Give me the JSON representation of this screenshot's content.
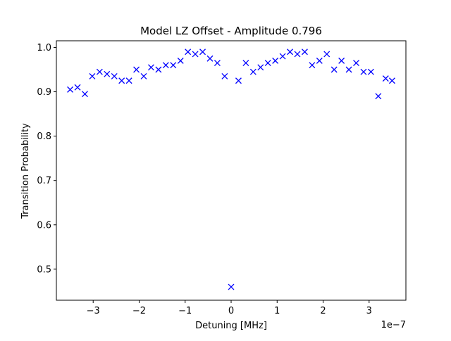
{
  "chart_data": {
    "type": "scatter",
    "title": "Model LZ Offset - Amplitude 0.796",
    "xlabel": "Detuning [MHz]",
    "ylabel": "Transition Probability",
    "x_offset_label": "1e−7",
    "xlim": [
      -3.8,
      3.8
    ],
    "ylim": [
      0.43,
      1.015
    ],
    "xticks": [
      -3,
      -2,
      -1,
      0,
      1,
      2,
      3
    ],
    "xtick_labels": [
      "−3",
      "−2",
      "−1",
      "0",
      "1",
      "2",
      "3"
    ],
    "yticks": [
      0.5,
      0.6,
      0.7,
      0.8,
      0.9,
      1.0
    ],
    "ytick_labels": [
      "0.5",
      "0.6",
      "0.7",
      "0.8",
      "0.9",
      "1.0"
    ],
    "grid": false,
    "marker": "x",
    "color": "#0000ff",
    "series": [
      {
        "x": [
          -3.5,
          -3.34,
          -3.18,
          -3.02,
          -2.86,
          -2.7,
          -2.54,
          -2.38,
          -2.22,
          -2.06,
          -1.9,
          -1.74,
          -1.58,
          -1.42,
          -1.26,
          -1.1,
          -0.94,
          -0.78,
          -0.62,
          -0.46,
          -0.3,
          -0.14,
          0.0,
          0.16,
          0.32,
          0.48,
          0.64,
          0.8,
          0.96,
          1.12,
          1.28,
          1.44,
          1.6,
          1.76,
          1.92,
          2.08,
          2.24,
          2.4,
          2.56,
          2.72,
          2.88,
          3.04,
          3.2,
          3.36,
          3.5
        ],
        "y": [
          0.905,
          0.91,
          0.895,
          0.935,
          0.945,
          0.94,
          0.935,
          0.925,
          0.925,
          0.95,
          0.935,
          0.955,
          0.95,
          0.96,
          0.96,
          0.97,
          0.99,
          0.985,
          0.99,
          0.975,
          0.965,
          0.935,
          0.46,
          0.925,
          0.965,
          0.945,
          0.955,
          0.965,
          0.97,
          0.98,
          0.99,
          0.985,
          0.99,
          0.96,
          0.97,
          0.985,
          0.95,
          0.97,
          0.95,
          0.965,
          0.945,
          0.945,
          0.89,
          0.93,
          0.925
        ]
      }
    ]
  }
}
